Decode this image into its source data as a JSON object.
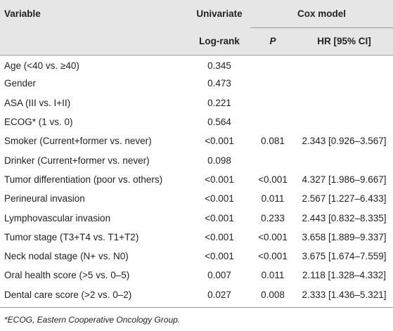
{
  "table": {
    "header": {
      "variable": "Variable",
      "univariate": "Univariate",
      "cox_model": "Cox model",
      "log_rank": "Log-rank",
      "p": "P",
      "hr": "HR [95% CI]"
    },
    "rows": [
      [
        "Age (<40 vs. ≥40)",
        "0.345",
        null,
        null
      ],
      [
        "Gender",
        "0.473",
        null,
        null
      ],
      [
        "ASA (III vs. I+II)",
        "0.221",
        null,
        null
      ],
      [
        "ECOG* (1 vs. 0)",
        "0.564",
        null,
        null
      ],
      [
        "Smoker (Current+former vs. never)",
        "<0.001",
        "0.081",
        "2.343 [0.926–3.567]"
      ],
      [
        "Drinker (Current+former vs. never)",
        "0.098",
        null,
        null
      ],
      [
        "Tumor differentiation (poor vs. others)",
        "<0.001",
        "<0.001",
        "4.327 [1.986–9.667]"
      ],
      [
        "Perineural invasion",
        "<0.001",
        "0.011",
        "2.567 [1.227–6.433]"
      ],
      [
        "Lymphovascular invasion",
        "<0.001",
        "0.233",
        "2.443 [0.832–8.335]"
      ],
      [
        "Tumor stage (T3+T4 vs. T1+T2)",
        "<0.001",
        "<0.001",
        "3.658 [1.889–9.337]"
      ],
      [
        "Neck nodal stage (N+ vs. N0)",
        "<0.001",
        "<0.001",
        "3.675 [1.674–7.559]"
      ],
      [
        "Oral health score (>5 vs. 0–5)",
        "0.007",
        "0.011",
        "2.118 [1.328–4.332]"
      ],
      [
        "Dental care score (>2 vs. 0–2)",
        "0.027",
        "0.008",
        "2.333 [1.436–5.321]"
      ]
    ],
    "footnote": "*ECOG, Eastern Cooperative Oncology Group."
  }
}
